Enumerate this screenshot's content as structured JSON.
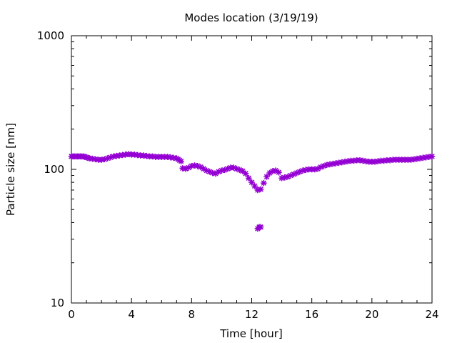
{
  "chart_data": {
    "type": "scatter",
    "title": "Modes location (3/19/19)",
    "xlabel": "Time [hour]",
    "ylabel": "Particle size [nm]",
    "xlim": [
      0,
      24
    ],
    "ylim": [
      10,
      1000
    ],
    "yscale": "log",
    "grid": false,
    "xticks": [
      0,
      4,
      8,
      12,
      16,
      20,
      24
    ],
    "xtick_labels": [
      "0",
      "4",
      "8",
      "12",
      "16",
      "20",
      "24"
    ],
    "yticks": [
      10,
      100,
      1000
    ],
    "ytick_labels": [
      "10",
      "100",
      "1000"
    ],
    "marker_color": "#9400d3",
    "series": [
      {
        "marker": "star",
        "x": [
          0.0,
          0.1,
          0.2,
          0.3,
          0.4,
          0.5,
          0.6,
          0.7,
          0.8,
          0.9,
          1.0,
          1.1,
          1.2,
          1.4,
          1.6,
          1.8,
          2.0,
          2.2,
          2.4,
          2.6,
          2.8,
          3.0,
          3.2,
          3.4,
          3.6,
          3.8,
          4.0,
          4.2,
          4.4,
          4.6,
          4.8,
          5.0,
          5.2,
          5.4,
          5.6,
          5.8,
          6.0,
          6.2,
          6.4,
          6.6,
          6.8,
          7.0,
          7.1,
          7.2,
          7.3,
          7.4,
          7.6,
          7.8,
          8.0,
          8.2,
          8.4,
          8.6,
          8.8,
          9.0,
          9.2,
          9.4,
          9.6,
          9.8,
          10.0,
          10.2,
          10.4,
          10.6,
          10.8,
          11.0,
          11.2,
          11.4,
          11.6,
          11.8,
          12.0,
          12.2,
          12.4,
          12.6,
          12.8,
          13.0,
          13.2,
          13.4,
          13.6,
          13.8,
          14.0,
          14.2,
          14.4,
          14.6,
          14.8,
          15.0,
          15.2,
          15.4,
          15.6,
          15.8,
          16.0,
          16.2,
          16.4,
          16.6,
          16.8,
          17.0,
          17.2,
          17.4,
          17.6,
          17.8,
          18.0,
          18.2,
          18.4,
          18.6,
          18.8,
          19.0,
          19.2,
          19.4,
          19.6,
          19.8,
          20.0,
          20.2,
          20.4,
          20.6,
          20.8,
          21.0,
          21.2,
          21.4,
          21.6,
          21.8,
          22.0,
          22.2,
          22.4,
          22.6,
          22.8,
          23.0,
          23.2,
          23.4,
          23.6,
          23.8,
          24.0,
          12.4,
          12.5,
          12.6
        ],
        "y": [
          125,
          125,
          125,
          125,
          125,
          125,
          125,
          125,
          125,
          124,
          123,
          122,
          121,
          120,
          119,
          118,
          118,
          119,
          121,
          123,
          125,
          126,
          127,
          128,
          129,
          130,
          129,
          129,
          128,
          127,
          127,
          126,
          125,
          125,
          124,
          124,
          124,
          124,
          124,
          123,
          122,
          121,
          119,
          117,
          115,
          102,
          101,
          103,
          106,
          107,
          106,
          104,
          101,
          98,
          96,
          94,
          93,
          96,
          98,
          99,
          101,
          103,
          103,
          101,
          99,
          97,
          93,
          86,
          80,
          75,
          70,
          71,
          79,
          88,
          94,
          97,
          98,
          95,
          86,
          87,
          88,
          90,
          92,
          94,
          96,
          98,
          99,
          100,
          100,
          100,
          101,
          104,
          106,
          108,
          109,
          110,
          111,
          112,
          113,
          114,
          115,
          116,
          116,
          117,
          117,
          116,
          115,
          114,
          114,
          114,
          115,
          116,
          116,
          117,
          117,
          118,
          118,
          118,
          118,
          118,
          118,
          118,
          119,
          120,
          121,
          122,
          123,
          124,
          125,
          36,
          37,
          37
        ]
      }
    ]
  }
}
